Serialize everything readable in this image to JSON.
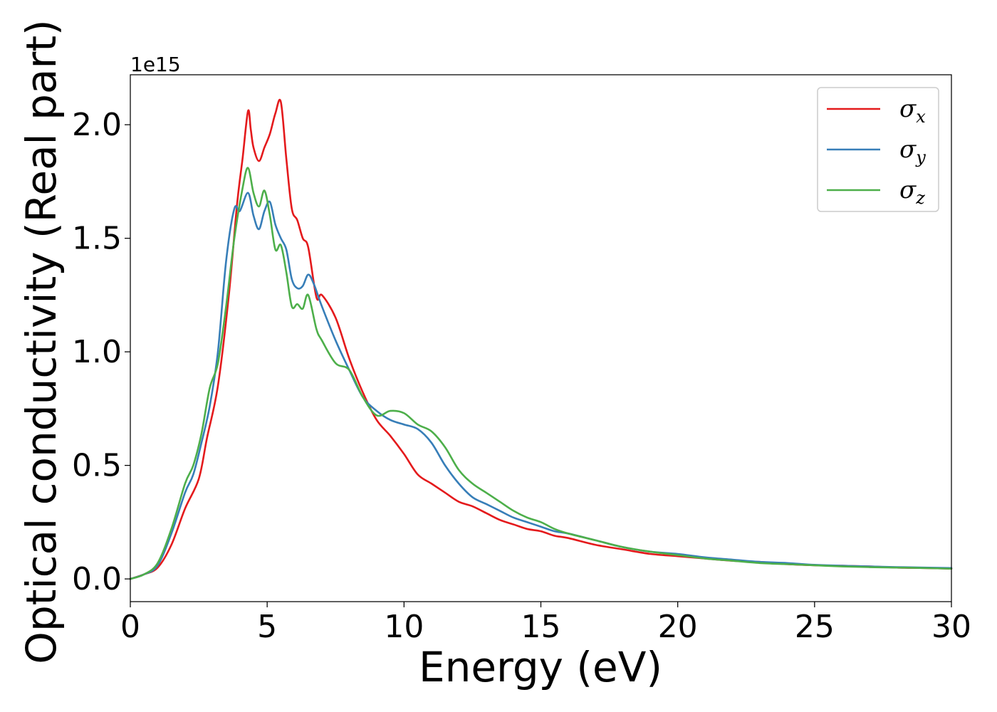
{
  "chart_data": {
    "type": "line",
    "title": "",
    "xlabel": "Energy (eV)",
    "ylabel": "Optical conductivity (Real part)",
    "y_offset_label": "1e15",
    "xlim": [
      0,
      30
    ],
    "ylim": [
      -0.1,
      2.22
    ],
    "x_ticks": [
      0,
      5,
      10,
      15,
      20,
      25,
      30
    ],
    "x_tick_labels": [
      "0",
      "5",
      "10",
      "15",
      "20",
      "25",
      "30"
    ],
    "y_ticks": [
      0.0,
      0.5,
      1.0,
      1.5,
      2.0
    ],
    "y_tick_labels": [
      "0.0",
      "0.5",
      "1.0",
      "1.5",
      "2.0"
    ],
    "grid": false,
    "legend_position": "top-right",
    "series": [
      {
        "name": "σx",
        "symbol": "σ",
        "subscript": "x",
        "color": "#e41a1c",
        "x": [
          0,
          0.5,
          1.0,
          1.5,
          2.0,
          2.5,
          2.8,
          3.2,
          3.6,
          3.9,
          4.1,
          4.3,
          4.4,
          4.5,
          4.7,
          4.9,
          5.1,
          5.3,
          5.5,
          5.7,
          5.9,
          6.1,
          6.3,
          6.5,
          6.8,
          7.0,
          7.5,
          8.0,
          8.5,
          9.0,
          9.5,
          10.0,
          10.5,
          11.0,
          11.5,
          12.0,
          12.5,
          13.0,
          13.5,
          14.0,
          14.5,
          15.0,
          15.5,
          16.0,
          17.0,
          18.0,
          19.0,
          20.0,
          21.0,
          22.0,
          23.0,
          24.0,
          25.0,
          26.0,
          27.0,
          28.0,
          29.0,
          30.0
        ],
        "values": [
          0.0,
          0.02,
          0.05,
          0.15,
          0.31,
          0.44,
          0.62,
          0.85,
          1.25,
          1.65,
          1.85,
          2.06,
          1.98,
          1.9,
          1.84,
          1.9,
          1.96,
          2.05,
          2.1,
          1.85,
          1.63,
          1.58,
          1.5,
          1.46,
          1.24,
          1.25,
          1.15,
          0.97,
          0.82,
          0.7,
          0.63,
          0.55,
          0.46,
          0.42,
          0.38,
          0.34,
          0.32,
          0.29,
          0.26,
          0.24,
          0.22,
          0.21,
          0.19,
          0.18,
          0.15,
          0.13,
          0.11,
          0.1,
          0.09,
          0.08,
          0.075,
          0.065,
          0.06,
          0.058,
          0.055,
          0.05,
          0.048,
          0.045
        ]
      },
      {
        "name": "σy",
        "symbol": "σ",
        "subscript": "y",
        "color": "#377eb8",
        "x": [
          0,
          0.5,
          1.0,
          1.5,
          2.0,
          2.3,
          2.6,
          2.9,
          3.2,
          3.5,
          3.8,
          4.0,
          4.3,
          4.5,
          4.7,
          4.9,
          5.1,
          5.3,
          5.5,
          5.7,
          5.9,
          6.1,
          6.3,
          6.5,
          6.7,
          7.0,
          7.5,
          8.0,
          8.5,
          9.0,
          9.5,
          10.0,
          10.5,
          11.0,
          11.5,
          12.0,
          12.5,
          13.0,
          13.5,
          14.0,
          14.5,
          15.0,
          15.5,
          16.0,
          17.0,
          18.0,
          19.0,
          20.0,
          21.0,
          22.0,
          23.0,
          24.0,
          25.0,
          26.0,
          27.0,
          28.0,
          29.0,
          30.0
        ],
        "values": [
          0.0,
          0.02,
          0.06,
          0.2,
          0.38,
          0.46,
          0.6,
          0.76,
          1.0,
          1.4,
          1.63,
          1.62,
          1.7,
          1.6,
          1.54,
          1.62,
          1.66,
          1.56,
          1.5,
          1.45,
          1.32,
          1.28,
          1.29,
          1.34,
          1.3,
          1.2,
          1.05,
          0.92,
          0.8,
          0.74,
          0.7,
          0.68,
          0.66,
          0.6,
          0.5,
          0.42,
          0.36,
          0.33,
          0.3,
          0.27,
          0.25,
          0.23,
          0.21,
          0.2,
          0.17,
          0.14,
          0.12,
          0.11,
          0.095,
          0.085,
          0.075,
          0.07,
          0.062,
          0.058,
          0.055,
          0.052,
          0.05,
          0.048
        ]
      },
      {
        "name": "σz",
        "symbol": "σ",
        "subscript": "z",
        "color": "#4daf4a",
        "x": [
          0,
          0.5,
          1.0,
          1.5,
          2.0,
          2.3,
          2.6,
          2.9,
          3.2,
          3.5,
          3.8,
          4.1,
          4.3,
          4.5,
          4.7,
          4.9,
          5.1,
          5.3,
          5.5,
          5.7,
          5.9,
          6.1,
          6.3,
          6.5,
          6.8,
          7.0,
          7.5,
          8.0,
          8.5,
          9.0,
          9.5,
          10.0,
          10.5,
          11.0,
          11.5,
          12.0,
          12.5,
          13.0,
          13.5,
          14.0,
          14.5,
          15.0,
          15.5,
          16.0,
          17.0,
          18.0,
          19.0,
          20.0,
          21.0,
          22.0,
          23.0,
          24.0,
          25.0,
          26.0,
          27.0,
          28.0,
          29.0,
          30.0
        ],
        "values": [
          0.0,
          0.02,
          0.07,
          0.22,
          0.42,
          0.5,
          0.64,
          0.84,
          0.95,
          1.2,
          1.5,
          1.72,
          1.81,
          1.7,
          1.64,
          1.71,
          1.6,
          1.45,
          1.47,
          1.35,
          1.2,
          1.21,
          1.19,
          1.25,
          1.1,
          1.05,
          0.95,
          0.92,
          0.8,
          0.72,
          0.74,
          0.73,
          0.68,
          0.65,
          0.58,
          0.48,
          0.42,
          0.38,
          0.34,
          0.3,
          0.27,
          0.25,
          0.22,
          0.2,
          0.17,
          0.14,
          0.12,
          0.105,
          0.09,
          0.08,
          0.07,
          0.065,
          0.06,
          0.055,
          0.052,
          0.05,
          0.048,
          0.045
        ]
      }
    ]
  }
}
